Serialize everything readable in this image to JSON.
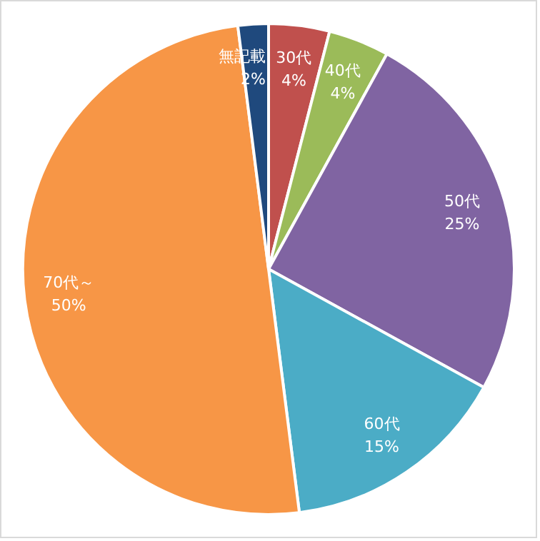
{
  "chart_data": {
    "type": "pie",
    "categories": [
      "30代",
      "40代",
      "50代",
      "60代",
      "70代～",
      "無記載"
    ],
    "values": [
      4,
      4,
      25,
      15,
      50,
      2
    ],
    "colors": [
      "#c0504d",
      "#9bbb59",
      "#8064a2",
      "#4bacc6",
      "#f79646",
      "#1f497d"
    ],
    "value_labels": [
      "4%",
      "4%",
      "25%",
      "15%",
      "50%",
      "2%"
    ]
  }
}
